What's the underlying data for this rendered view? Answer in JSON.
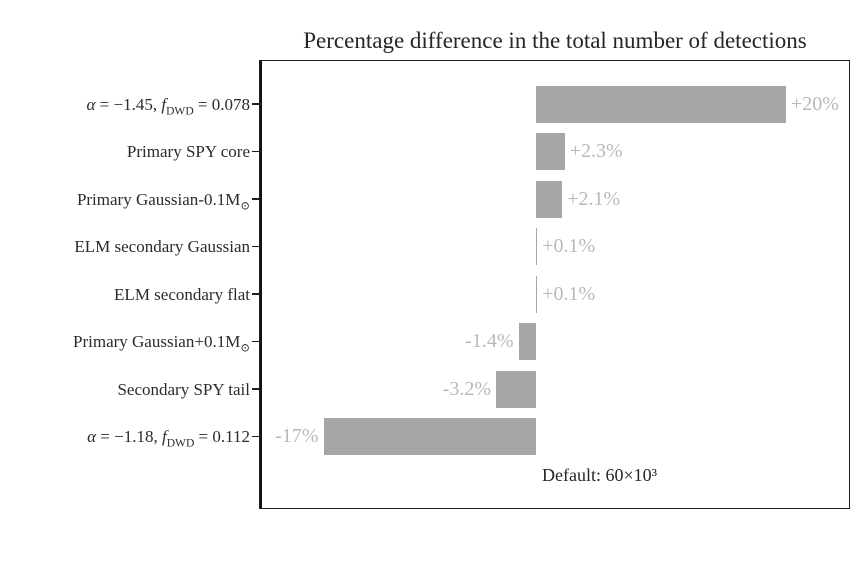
{
  "chart_data": {
    "type": "bar",
    "orientation": "horizontal",
    "title": "Percentage difference in the total number of detections",
    "xlabel": "",
    "ylabel": "",
    "xlim": [
      -22.1,
      25
    ],
    "grid": false,
    "legend": false,
    "bar_color": "#a6a6a6",
    "value_label_color": "#b8b8b8",
    "annotation": "Default: 60×10³",
    "categories": [
      "α = −1.45, f_DWD = 0.078",
      "Primary SPY core",
      "Primary Gaussian-0.1M⊙",
      "ELM secondary Gaussian",
      "ELM secondary flat",
      "Primary Gaussian+0.1M⊙",
      "Secondary SPY tail",
      "α = −1.18, f_DWD = 0.112"
    ],
    "values": [
      20,
      2.3,
      2.1,
      0.1,
      0.1,
      -1.4,
      -3.2,
      -17
    ],
    "value_labels": [
      "+20%",
      "+2.3%",
      "+2.1%",
      "+0.1%",
      "+0.1%",
      "-1.4%",
      "-3.2%",
      "-17%"
    ],
    "rows": [
      {
        "value": 20,
        "value_label": "+20%",
        "label_segments": [
          {
            "t": "α",
            "i": true
          },
          {
            "t": " = −1.45, "
          },
          {
            "t": "f",
            "i": true
          },
          {
            "t": "DWD",
            "sub": true
          },
          {
            "t": " = 0.078"
          }
        ]
      },
      {
        "value": 2.3,
        "value_label": "+2.3%",
        "label_segments": [
          {
            "t": "Primary SPY core"
          }
        ]
      },
      {
        "value": 2.1,
        "value_label": "+2.1%",
        "label_segments": [
          {
            "t": "Primary Gaussian-0.1M"
          },
          {
            "t": "⊙",
            "sub": true
          }
        ]
      },
      {
        "value": 0.1,
        "value_label": "+0.1%",
        "label_segments": [
          {
            "t": "ELM secondary Gaussian"
          }
        ]
      },
      {
        "value": 0.1,
        "value_label": "+0.1%",
        "label_segments": [
          {
            "t": "ELM secondary flat"
          }
        ]
      },
      {
        "value": -1.4,
        "value_label": "-1.4%",
        "label_segments": [
          {
            "t": "Primary Gaussian+0.1M"
          },
          {
            "t": "⊙",
            "sub": true
          }
        ]
      },
      {
        "value": -3.2,
        "value_label": "-3.2%",
        "label_segments": [
          {
            "t": "Secondary SPY tail"
          }
        ]
      },
      {
        "value": -17,
        "value_label": "-17%",
        "label_segments": [
          {
            "t": "α",
            "i": true
          },
          {
            "t": " = −1.18, "
          },
          {
            "t": "f",
            "i": true
          },
          {
            "t": "DWD",
            "sub": true
          },
          {
            "t": " = 0.112"
          }
        ]
      }
    ]
  }
}
